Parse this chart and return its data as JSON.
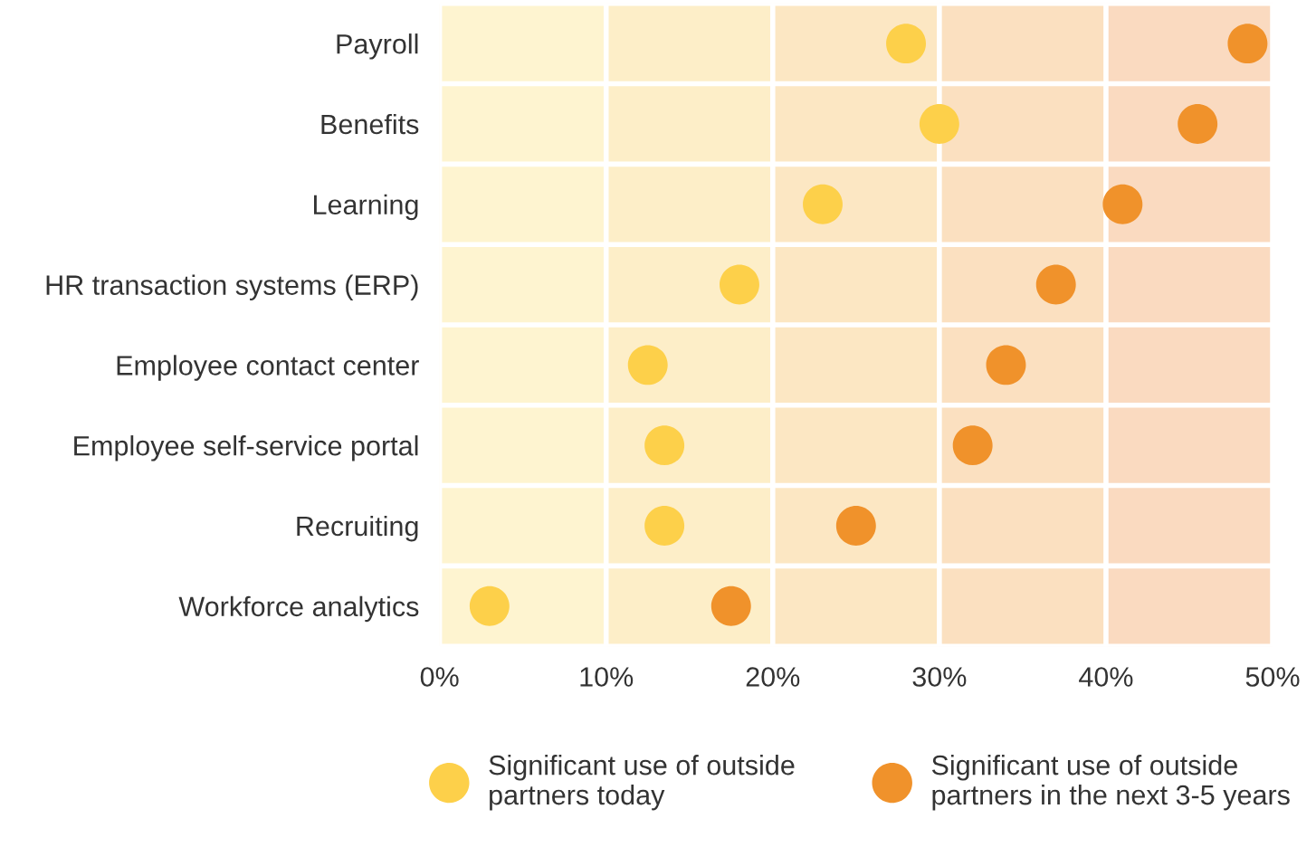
{
  "chart_data": {
    "type": "scatter",
    "orientation": "horizontal",
    "categories": [
      "Payroll",
      "Benefits",
      "Learning",
      "HR transaction systems (ERP)",
      "Employee contact center",
      "Employee self-service portal",
      "Recruiting",
      "Workforce analytics"
    ],
    "series": [
      {
        "name": "Significant use of outside partners today",
        "color": "#fdd04a",
        "values": [
          28,
          30,
          23,
          18,
          12.5,
          13.5,
          13.5,
          3
        ]
      },
      {
        "name": "Significant use of outside partners in the next 3-5 years",
        "color": "#f0922b",
        "values": [
          48.5,
          45.5,
          41,
          37,
          34,
          32,
          25,
          17.5
        ]
      }
    ],
    "xlim": [
      0,
      50
    ],
    "xticks": [
      {
        "value": 0,
        "label": "0%"
      },
      {
        "value": 10,
        "label": "10%"
      },
      {
        "value": 20,
        "label": "20%"
      },
      {
        "value": 30,
        "label": "30%"
      },
      {
        "value": 40,
        "label": "40%"
      },
      {
        "value": 50,
        "label": "50%"
      }
    ],
    "bands": [
      {
        "axis": "x",
        "from": 0,
        "to": 10,
        "color": "#fef4d0"
      },
      {
        "axis": "x",
        "from": 10,
        "to": 20,
        "color": "#fdeec8"
      },
      {
        "axis": "x",
        "from": 20,
        "to": 30,
        "color": "#fce7c3"
      },
      {
        "axis": "x",
        "from": 30,
        "to": 40,
        "color": "#fbe0c0"
      },
      {
        "axis": "x",
        "from": 40,
        "to": 50,
        "color": "#fadac0"
      }
    ],
    "grid": true,
    "legend": "bottom",
    "marker": "circle"
  }
}
